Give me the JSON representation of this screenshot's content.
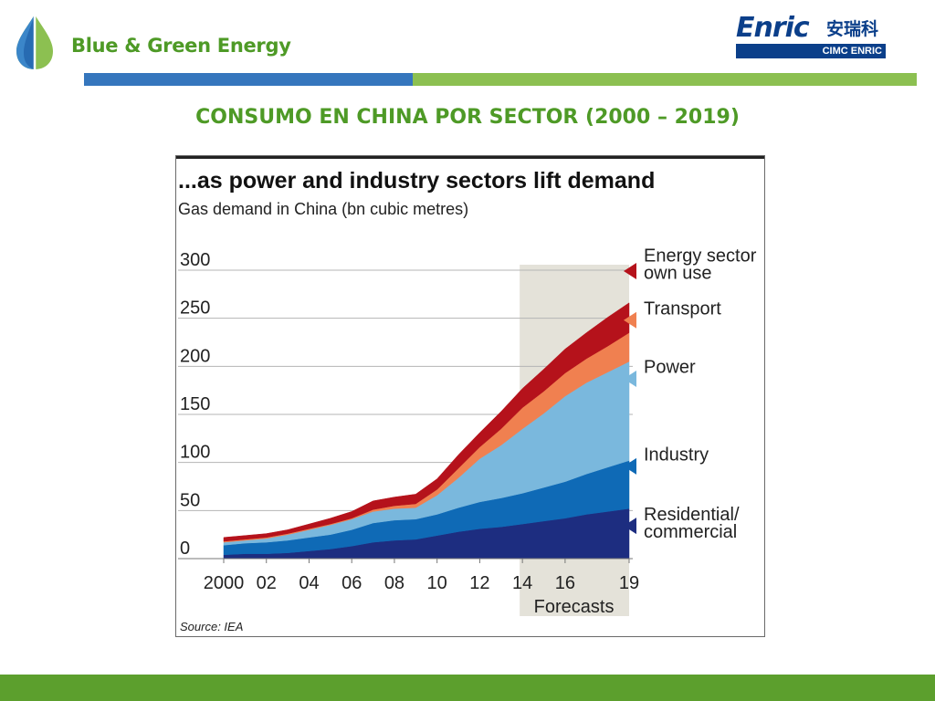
{
  "header": {
    "brand_name": "Blue & Green Energy",
    "partner_logo": {
      "word": "Enric",
      "chinese": "安瑞科",
      "band": "CIMC ENRIC"
    }
  },
  "slide": {
    "title": "CONSUMO EN CHINA POR SECTOR  (2000 – 2019)"
  },
  "colors": {
    "brand_green": "#4e9a26",
    "brand_blue": "#3576bd",
    "partner_blue": "#0b3f8a",
    "footer_green": "#5c9f2d"
  },
  "chart_data": {
    "type": "area",
    "stacked": true,
    "title": "...as power and industry sectors lift demand",
    "subtitle": "Gas demand in China (bn cubic metres)",
    "x": [
      2000,
      2001,
      2002,
      2003,
      2004,
      2005,
      2006,
      2007,
      2008,
      2009,
      2010,
      2011,
      2012,
      2013,
      2014,
      2015,
      2016,
      2017,
      2018,
      2019
    ],
    "x_tick_labels": [
      "2000",
      "02",
      "04",
      "06",
      "08",
      "10",
      "12",
      "14",
      "16",
      "19"
    ],
    "y_ticks": [
      0,
      50,
      100,
      150,
      200,
      250,
      300
    ],
    "ylim": [
      0,
      300
    ],
    "grid": true,
    "series": [
      {
        "name": "Residential/ commercial",
        "color": "#1d2d80",
        "values": [
          4,
          5,
          5,
          6,
          8,
          10,
          13,
          17,
          19,
          20,
          24,
          28,
          31,
          33,
          36,
          39,
          42,
          46,
          49,
          52
        ]
      },
      {
        "name": "Industry",
        "color": "#0f6ab6",
        "values": [
          10,
          11,
          12,
          13,
          14,
          15,
          17,
          20,
          21,
          21,
          22,
          25,
          28,
          30,
          32,
          35,
          38,
          42,
          46,
          50
        ]
      },
      {
        "name": "Power",
        "color": "#7ab8dd",
        "values": [
          3,
          3,
          4,
          6,
          8,
          10,
          11,
          12,
          12,
          12,
          20,
          31,
          45,
          55,
          67,
          77,
          89,
          95,
          99,
          103
        ]
      },
      {
        "name": "Transport",
        "color": "#f08050",
        "values": [
          1,
          1,
          1,
          1,
          1,
          1,
          1,
          2,
          3,
          4,
          6,
          10,
          12,
          17,
          22,
          23,
          24,
          25,
          27,
          30
        ]
      },
      {
        "name": "Energy sector own use",
        "color": "#b5121b",
        "values": [
          4,
          4,
          4,
          4,
          5,
          6,
          7,
          9,
          9,
          10,
          11,
          14,
          15,
          18,
          20,
          23,
          25,
          27,
          30,
          31
        ]
      }
    ],
    "annotations": [
      "Forecasts"
    ],
    "source": "Source: IEA"
  }
}
